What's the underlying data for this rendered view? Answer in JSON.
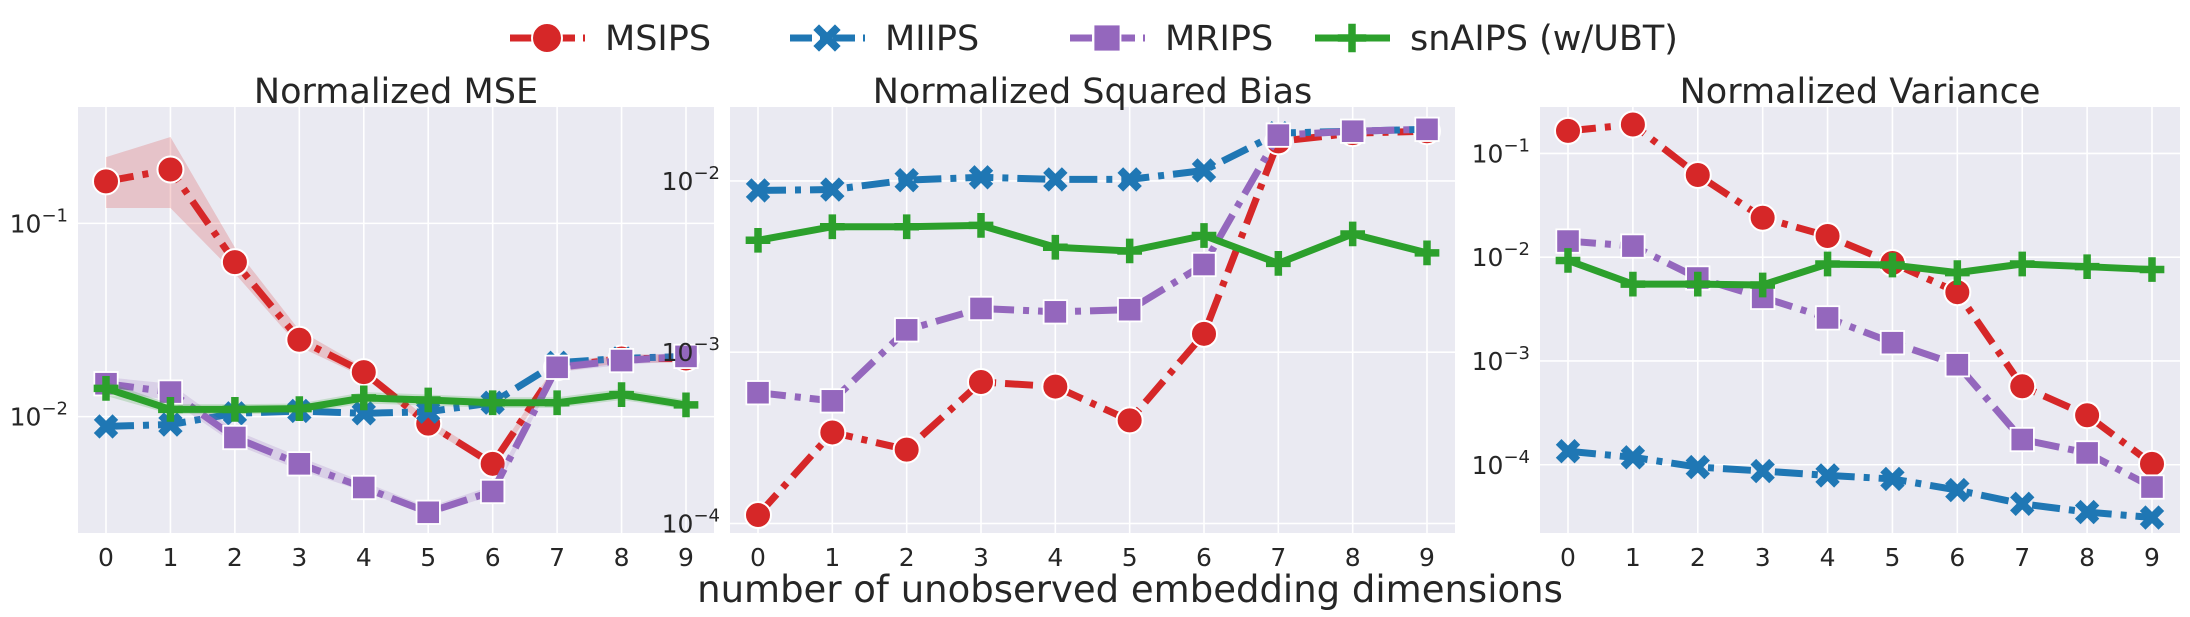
{
  "xlabel": "number of unobserved embedding dimensions",
  "legend": [
    {
      "name": "MSIPS",
      "color": "#d62728",
      "marker": "circle",
      "dash": "dashdot"
    },
    {
      "name": "MIIPS",
      "color": "#1f77b4",
      "marker": "x",
      "dash": "dashdot"
    },
    {
      "name": "MRIPS",
      "color": "#9467bd",
      "marker": "square",
      "dash": "dashdot"
    },
    {
      "name": "snAIPS (w/UBT)",
      "color": "#2ca02c",
      "marker": "plus",
      "dash": "solid"
    }
  ],
  "chart_data": [
    {
      "type": "line",
      "title": "Normalized MSE",
      "yscale": "log",
      "ylim": [
        0.0025,
        0.4
      ],
      "x": [
        0,
        1,
        2,
        3,
        4,
        5,
        6,
        7,
        8,
        9
      ],
      "xticks": [
        "0",
        "1",
        "2",
        "3",
        "4",
        "5",
        "6",
        "7",
        "8",
        "9"
      ],
      "yticks": [
        {
          "value": 0.1,
          "base": "10",
          "exp": "−1"
        },
        {
          "value": 0.01,
          "base": "10",
          "exp": "−2"
        }
      ],
      "grid": true,
      "series": [
        {
          "name": "MSIPS",
          "values": [
            0.165,
            0.19,
            0.063,
            0.025,
            0.017,
            0.0092,
            0.0057,
            0.018,
            0.02,
            0.02
          ],
          "band": [
            [
              0.12,
              0.22
            ],
            [
              0.12,
              0.28
            ],
            [
              0.055,
              0.075
            ],
            [
              0.023,
              0.028
            ],
            [
              0.016,
              0.018
            ],
            [
              0.0088,
              0.0097
            ],
            [
              0.0054,
              0.006
            ],
            [
              0.017,
              0.019
            ],
            [
              0.019,
              0.021
            ],
            [
              0.019,
              0.021
            ]
          ]
        },
        {
          "name": "MIIPS",
          "values": [
            0.0089,
            0.0091,
            0.0104,
            0.0107,
            0.0104,
            0.0106,
            0.0118,
            0.019,
            0.02,
            0.0205
          ]
        },
        {
          "name": "MRIPS",
          "values": [
            0.0148,
            0.0134,
            0.0078,
            0.0057,
            0.0043,
            0.0032,
            0.0041,
            0.018,
            0.0195,
            0.0205
          ],
          "band": [
            [
              0.0135,
              0.016
            ],
            [
              0.0122,
              0.0148
            ],
            [
              0.0072,
              0.0085
            ],
            [
              0.0053,
              0.0062
            ],
            [
              0.0041,
              0.0046
            ],
            [
              0.0031,
              0.0034
            ],
            [
              0.0039,
              0.0044
            ],
            [
              0.017,
              0.019
            ],
            [
              0.0185,
              0.0205
            ],
            [
              0.0195,
              0.0215
            ]
          ]
        },
        {
          "name": "snAIPS (w/UBT)",
          "values": [
            0.014,
            0.0109,
            0.0109,
            0.011,
            0.0125,
            0.0122,
            0.0118,
            0.0118,
            0.013,
            0.0115
          ],
          "band": [
            [
              0.0128,
              0.0152
            ],
            [
              0.0103,
              0.0116
            ],
            [
              0.0103,
              0.0116
            ],
            [
              0.0104,
              0.0117
            ],
            [
              0.0117,
              0.0134
            ],
            [
              0.0114,
              0.013
            ],
            [
              0.0111,
              0.0126
            ],
            [
              0.0111,
              0.0126
            ],
            [
              0.0122,
              0.0139
            ],
            [
              0.0109,
              0.0122
            ]
          ]
        }
      ]
    },
    {
      "type": "line",
      "title": "Normalized Squared Bias",
      "yscale": "log",
      "ylim": [
        8.8e-05,
        0.027
      ],
      "x": [
        0,
        1,
        2,
        3,
        4,
        5,
        6,
        7,
        8,
        9
      ],
      "xticks": [
        "0",
        "1",
        "2",
        "3",
        "4",
        "5",
        "6",
        "7",
        "8",
        "9"
      ],
      "yticks": [
        {
          "value": 0.01,
          "base": "10",
          "exp": "−2"
        },
        {
          "value": 0.001,
          "base": "10",
          "exp": "−3"
        },
        {
          "value": 0.0001,
          "base": "10",
          "exp": "−4"
        }
      ],
      "grid": true,
      "series": [
        {
          "name": "MSIPS",
          "values": [
            0.000112,
            0.00034,
            0.00027,
            0.00067,
            0.00063,
            0.0004,
            0.00128,
            0.017,
            0.019,
            0.0195
          ]
        },
        {
          "name": "MIIPS",
          "values": [
            0.0088,
            0.0089,
            0.0101,
            0.0105,
            0.0102,
            0.0102,
            0.0115,
            0.019,
            0.0195,
            0.02
          ]
        },
        {
          "name": "MRIPS",
          "values": [
            0.00058,
            0.00052,
            0.00135,
            0.0018,
            0.00172,
            0.00177,
            0.00325,
            0.0185,
            0.0195,
            0.02
          ]
        },
        {
          "name": "snAIPS (w/UBT)",
          "values": [
            0.0045,
            0.0054,
            0.0054,
            0.0055,
            0.0041,
            0.0039,
            0.0048,
            0.0033,
            0.0049,
            0.0038
          ]
        }
      ]
    },
    {
      "type": "line",
      "title": "Normalized Variance",
      "yscale": "log",
      "ylim": [
        2.2e-05,
        0.28
      ],
      "x": [
        0,
        1,
        2,
        3,
        4,
        5,
        6,
        7,
        8,
        9
      ],
      "xticks": [
        "0",
        "1",
        "2",
        "3",
        "4",
        "5",
        "6",
        "7",
        "8",
        "9"
      ],
      "yticks": [
        {
          "value": 0.1,
          "base": "10",
          "exp": "−1"
        },
        {
          "value": 0.01,
          "base": "10",
          "exp": "−2"
        },
        {
          "value": 0.001,
          "base": "10",
          "exp": "−3"
        },
        {
          "value": 0.0001,
          "base": "10",
          "exp": "−4"
        }
      ],
      "grid": true,
      "series": [
        {
          "name": "MSIPS",
          "values": [
            0.165,
            0.19,
            0.062,
            0.024,
            0.016,
            0.0088,
            0.0046,
            0.00057,
            0.0003,
            0.000102
          ]
        },
        {
          "name": "MIIPS",
          "values": [
            0.000135,
            0.000118,
            9.5e-05,
            8.7e-05,
            7.9e-05,
            7.3e-05,
            5.7e-05,
            4.2e-05,
            3.5e-05,
            3.1e-05
          ]
        },
        {
          "name": "MRIPS",
          "values": [
            0.0143,
            0.0128,
            0.0063,
            0.0041,
            0.0026,
            0.0015,
            0.00092,
            0.000175,
            0.00013,
            6.1e-05
          ]
        },
        {
          "name": "snAIPS (w/UBT)",
          "values": [
            0.0093,
            0.0055,
            0.0055,
            0.0054,
            0.0086,
            0.0084,
            0.0071,
            0.0086,
            0.0081,
            0.0076
          ]
        }
      ]
    }
  ]
}
